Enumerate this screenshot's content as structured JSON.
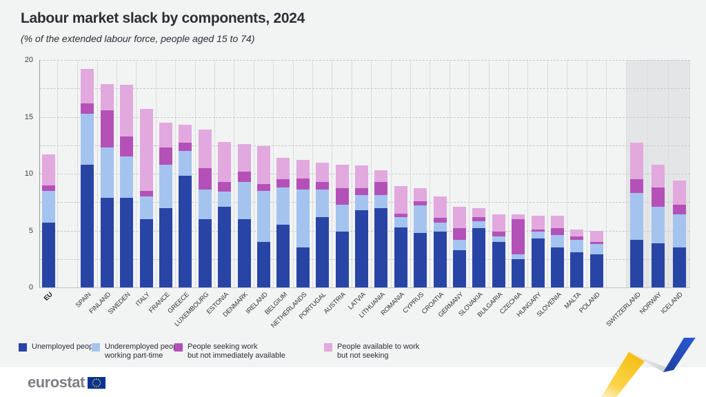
{
  "header": {
    "title": "Labour market slack by components, 2024",
    "subtitle": "(% of the extended labour force, people aged 15 to 74)"
  },
  "chart_data": {
    "type": "bar",
    "stacked": true,
    "unit": "% of the extended labour force",
    "ylim": [
      0,
      20
    ],
    "yticks": [
      0,
      5,
      10,
      15,
      20
    ],
    "gridline_step": 2.5,
    "grid": true,
    "legend_position": "bottom",
    "highlight_category": "EU",
    "efta_countries": [
      "SWITZERLAND",
      "NORWAY",
      "ICELAND"
    ],
    "categories": [
      "EU",
      "SPAIN",
      "FINLAND",
      "SWEDEN",
      "ITALY",
      "FRANCE",
      "GREECE",
      "LUXEMBOURG",
      "ESTONIA",
      "DENMARK",
      "IRELAND",
      "BELGIUM",
      "NETHERLANDS",
      "PORTUGAL",
      "AUSTRIA",
      "LATVIA",
      "LITHUANIA",
      "ROMANIA",
      "CYPRUS",
      "CROATIA",
      "GERMANY",
      "SLOVAKIA",
      "BULGARIA",
      "CZECHIA",
      "HUNGARY",
      "SLOVENIA",
      "MALTA",
      "POLAND",
      "SWITZERLAND",
      "NORWAY",
      "ICELAND"
    ],
    "series": [
      {
        "name": "Unemployed people",
        "color": "#2845A6",
        "values": [
          5.7,
          10.8,
          7.9,
          7.9,
          6.0,
          7.0,
          9.8,
          6.0,
          7.1,
          6.0,
          4.0,
          5.5,
          3.5,
          6.2,
          4.9,
          6.8,
          7.0,
          5.3,
          4.8,
          4.9,
          3.3,
          5.2,
          4.0,
          2.5,
          4.3,
          3.5,
          3.1,
          2.9,
          4.2,
          3.9,
          3.5
        ]
      },
      {
        "name": "Underemployed people working part-time",
        "color": "#A4C4EF",
        "values": [
          2.8,
          4.5,
          4.4,
          3.6,
          2.0,
          3.8,
          2.2,
          2.6,
          1.3,
          3.3,
          4.5,
          3.3,
          5.1,
          2.4,
          2.4,
          1.3,
          1.1,
          0.9,
          2.4,
          0.8,
          0.9,
          0.6,
          0.5,
          0.4,
          0.6,
          1.1,
          1.1,
          0.9,
          4.1,
          3.2,
          2.9
        ]
      },
      {
        "name": "People seeking work but not immediately available",
        "color": "#B451B8",
        "values": [
          0.5,
          0.9,
          3.3,
          1.8,
          0.5,
          1.5,
          0.7,
          1.9,
          0.9,
          0.9,
          0.6,
          0.7,
          1.0,
          0.7,
          1.4,
          0.6,
          1.2,
          0.3,
          0.4,
          0.4,
          1.0,
          0.4,
          0.4,
          3.1,
          0.2,
          0.6,
          0.3,
          0.2,
          1.2,
          1.7,
          0.9
        ]
      },
      {
        "name": "People available to work but not seeking",
        "color": "#E1A9DE",
        "values": [
          2.7,
          3.0,
          2.3,
          4.5,
          7.2,
          2.2,
          1.6,
          3.4,
          3.5,
          2.4,
          3.3,
          1.9,
          1.6,
          1.7,
          2.1,
          2.0,
          1.0,
          2.4,
          1.1,
          1.9,
          1.9,
          0.8,
          1.5,
          0.4,
          1.2,
          1.1,
          0.6,
          1.0,
          3.2,
          2.0,
          2.1
        ]
      }
    ]
  },
  "legend": {
    "items": [
      {
        "line1": "Unemployed people",
        "line2": ""
      },
      {
        "line1": "Underemployed people",
        "line2": "working part-time"
      },
      {
        "line1": "People seeking work",
        "line2": "but not immediately available"
      },
      {
        "line1": "People available to work",
        "line2": "but not seeking"
      }
    ]
  },
  "footer": {
    "logo_text": "eurostat"
  },
  "colors": {
    "page_background": "#F2F3F3",
    "efta_panel": "#E4E5E6",
    "gridline": "#C7C8CA",
    "column_line": "#DBDCDE",
    "axis_line": "#9A9CA0",
    "footer_background": "#FFFFFF",
    "ribbon_yellow": "#F6BE0F",
    "ribbon_silver": "#D7DADD",
    "ribbon_blue": "#2350BE",
    "eu_flag_blue": "#003399",
    "eu_flag_stars": "#FFCC00"
  }
}
